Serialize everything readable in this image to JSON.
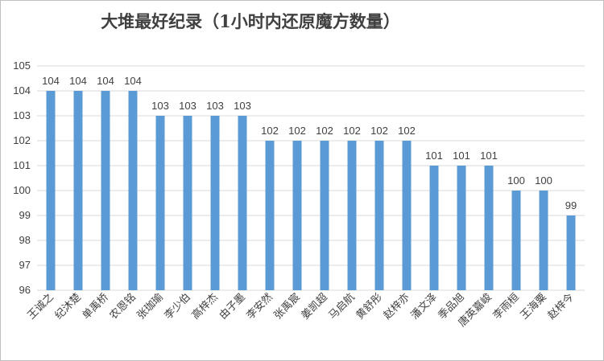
{
  "chart_data": {
    "type": "bar",
    "title": "大堆最好纪录（1小时内还原魔方数量）",
    "xlabel": "",
    "ylabel": "",
    "ylim": [
      96,
      105
    ],
    "yticks": [
      96,
      97,
      98,
      99,
      100,
      101,
      102,
      103,
      104,
      105
    ],
    "grid": true,
    "legend": "none",
    "bar_color": "#5b9bd5",
    "categories": [
      "王诚之",
      "纪沐楚",
      "单禹桥",
      "农恩铭",
      "张珈瑜",
      "李少伯",
      "高梓杰",
      "由子墨",
      "李安然",
      "张禹宸",
      "姜凯超",
      "马启航",
      "黄舒彤",
      "赵梓亦",
      "潘文泽",
      "季品旭",
      "唐英嘉峻",
      "李雨桓",
      "王海粟",
      "赵梓今"
    ],
    "values": [
      104,
      104,
      104,
      104,
      103,
      103,
      103,
      103,
      102,
      102,
      102,
      102,
      102,
      102,
      101,
      101,
      101,
      100,
      100,
      99
    ]
  }
}
